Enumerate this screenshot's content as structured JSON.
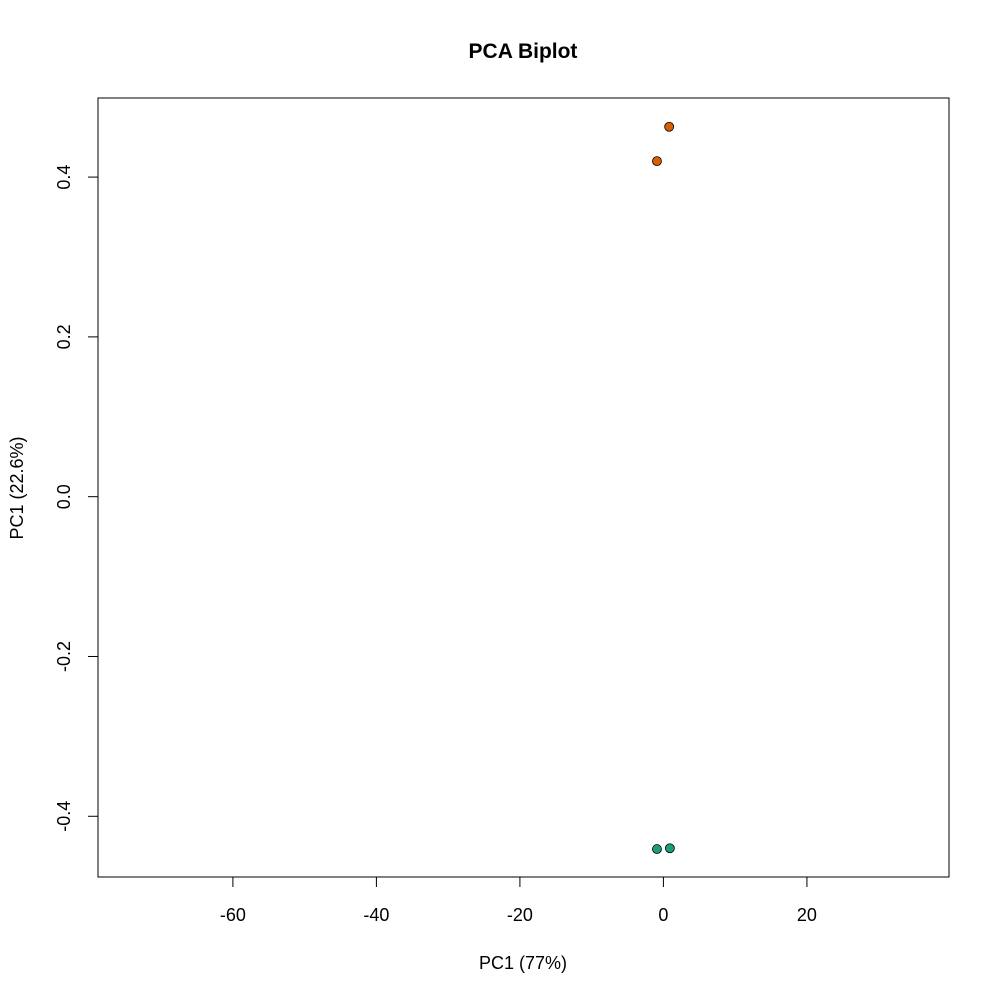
{
  "chart_data": {
    "type": "scatter",
    "title": "PCA Biplot",
    "xlabel": "PC1 (77%)",
    "ylabel": "PC1 (22.6%)",
    "xlim": [
      -78.8,
      39.8
    ],
    "ylim": [
      -0.476,
      0.499
    ],
    "x_ticks": [
      -60,
      -40,
      -20,
      0,
      20
    ],
    "y_ticks": [
      -0.4,
      -0.2,
      0.0,
      0.2,
      0.4
    ],
    "x_tick_labels": [
      "-60",
      "-40",
      "-20",
      "0",
      "20"
    ],
    "y_tick_labels": [
      "-0.4",
      "-0.2",
      "0.0",
      "0.2",
      "0.4"
    ],
    "grid": false,
    "legend": "none",
    "series": [
      {
        "color": "#D95F02",
        "points": [
          {
            "x": 0.8,
            "y": 0.463
          },
          {
            "x": -0.9,
            "y": 0.42
          }
        ]
      },
      {
        "color": "#1B9E77",
        "points": [
          {
            "x": -0.9,
            "y": -0.441
          },
          {
            "x": 0.9,
            "y": -0.44
          }
        ]
      }
    ]
  }
}
